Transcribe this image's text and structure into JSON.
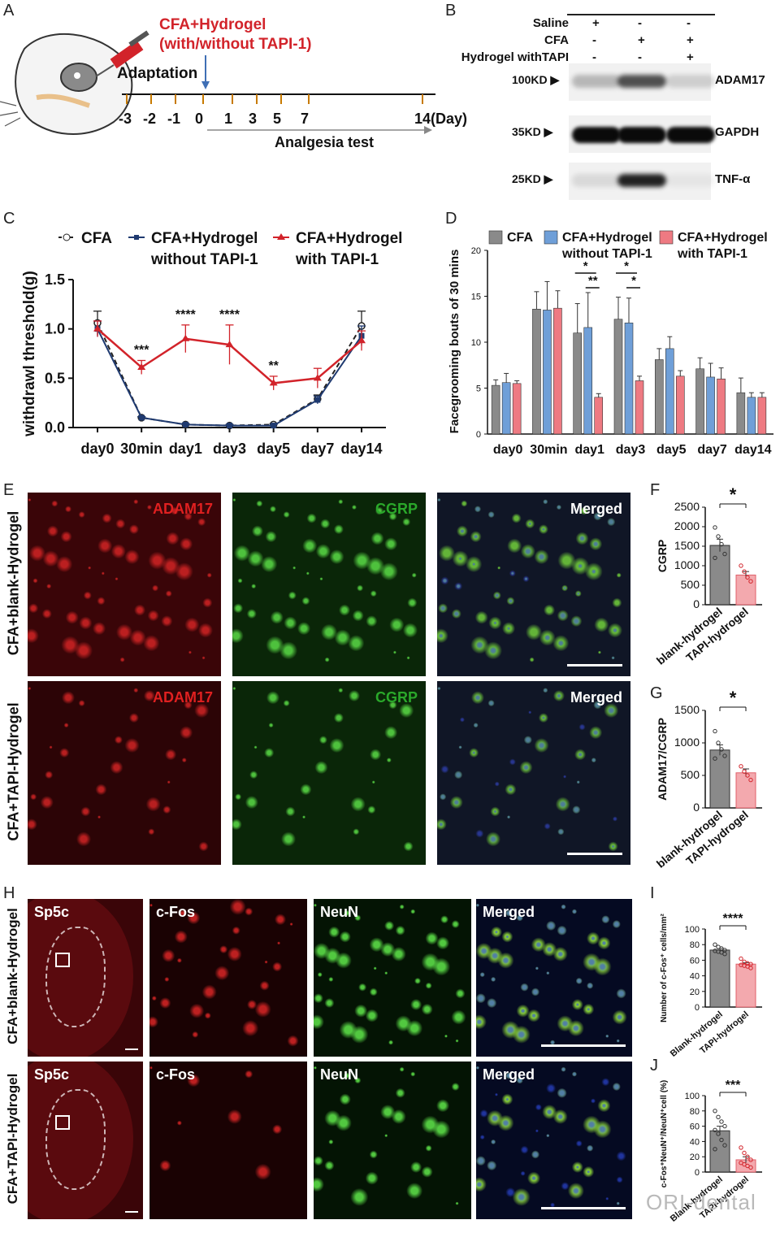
{
  "panels": {
    "A": "A",
    "B": "B",
    "C": "C",
    "D": "D",
    "E": "E",
    "F": "F",
    "G": "G",
    "H": "H",
    "I": "I",
    "J": "J"
  },
  "panelA": {
    "injection_label_1": "CFA+Hydrogel",
    "injection_label_2": "(with/without TAPI-1)",
    "adaptation": "Adaptation",
    "ticks": [
      "-3",
      "-2",
      "-1",
      "0",
      "1",
      "3",
      "5",
      "7",
      "14(Day)"
    ],
    "analgesia": "Analgesia test"
  },
  "panelB": {
    "rows": [
      {
        "label": "Saline",
        "marks": [
          "+",
          "-",
          "-"
        ]
      },
      {
        "label": "CFA",
        "marks": [
          "-",
          "+",
          "+"
        ]
      },
      {
        "label": "Hydrogel withTAPI",
        "marks": [
          "-",
          "-",
          "+"
        ]
      }
    ],
    "bands": [
      {
        "size": "100KD",
        "target": "ADAM17",
        "levels": [
          0.25,
          0.7,
          0.15
        ]
      },
      {
        "size": "35KD",
        "target": "GAPDH",
        "levels": [
          1,
          1,
          1
        ]
      },
      {
        "size": "25KD",
        "target": "TNF-α",
        "levels": [
          0.1,
          0.9,
          0.05
        ]
      }
    ]
  },
  "chart_data": [
    {
      "id": "C",
      "type": "line",
      "ylabel": "withdrawl threshold(g)",
      "categories": [
        "day0",
        "30min",
        "day1",
        "day3",
        "day5",
        "day7",
        "day14"
      ],
      "ylim": [
        0,
        1.5
      ],
      "yticks": [
        "0.0",
        "0.5",
        "1.0",
        "1.5"
      ],
      "series": [
        {
          "name": "CFA",
          "color": "#222222",
          "values": [
            1.06,
            0.1,
            0.03,
            0.02,
            0.03,
            0.29,
            1.03
          ],
          "err": [
            0.12,
            0.01,
            0.01,
            0.01,
            0.01,
            0.04,
            0.15
          ]
        },
        {
          "name_1": "CFA+Hydrogel",
          "name_2": "without TAPI-1",
          "color": "#1f3a70",
          "values": [
            1.0,
            0.1,
            0.03,
            0.02,
            0.02,
            0.28,
            0.93
          ],
          "err": [
            0.08,
            0.01,
            0.01,
            0.01,
            0.01,
            0.04,
            0.1
          ]
        },
        {
          "name_1": "CFA+Hydrogel",
          "name_2": "with TAPI-1",
          "color": "#d2232a",
          "values": [
            1.0,
            0.61,
            0.9,
            0.84,
            0.45,
            0.5,
            0.88
          ],
          "err": [
            0.08,
            0.07,
            0.14,
            0.2,
            0.07,
            0.1,
            0.1
          ]
        }
      ],
      "significance": [
        {
          "index": 1,
          "text": "***"
        },
        {
          "index": 2,
          "text": "****"
        },
        {
          "index": 3,
          "text": "****"
        },
        {
          "index": 4,
          "text": "**"
        }
      ]
    },
    {
      "id": "D",
      "type": "bar",
      "ylabel": "Facegrooming bouts of 30 mins",
      "categories": [
        "day0",
        "30min",
        "day1",
        "day3",
        "day5",
        "day7",
        "day14"
      ],
      "ylim": [
        0,
        20
      ],
      "yticks": [
        "0",
        "5",
        "10",
        "15",
        "20"
      ],
      "series": [
        {
          "name": "CFA",
          "color": "#8a8a8a",
          "values": [
            5.3,
            13.6,
            11.0,
            12.5,
            8.1,
            7.1,
            4.5
          ],
          "err": [
            0.6,
            1.9,
            3.2,
            2.4,
            1.2,
            1.2,
            1.6
          ]
        },
        {
          "name_1": "CFA+Hydrogel",
          "name_2": "without TAPI-1",
          "color": "#6f9fd8",
          "values": [
            5.6,
            13.5,
            11.6,
            12.1,
            9.3,
            6.2,
            4.0
          ],
          "err": [
            1.0,
            3.1,
            3.8,
            2.7,
            1.3,
            1.5,
            0.5
          ]
        },
        {
          "name_1": "CFA+Hydrogel",
          "name_2": "with TAPI-1",
          "color": "#ee7a82",
          "values": [
            5.5,
            13.7,
            4.0,
            5.8,
            6.3,
            6.0,
            4.0
          ],
          "err": [
            0.3,
            1.9,
            0.4,
            0.5,
            0.6,
            1.2,
            0.5
          ]
        }
      ],
      "significance": [
        {
          "index": 2,
          "upper": "*",
          "lower": "**"
        },
        {
          "index": 3,
          "upper": "*",
          "lower": "*"
        }
      ]
    },
    {
      "id": "F",
      "type": "bar",
      "ylabel": "CGRP",
      "categories": [
        "blank-hydrogel",
        "TAPI-hydrogel"
      ],
      "ylim": [
        0,
        2500
      ],
      "yticks": [
        "0",
        "500",
        "1000",
        "1500",
        "2000",
        "2500"
      ],
      "values": [
        1520,
        760
      ],
      "err": [
        160,
        90
      ],
      "colors": [
        "#8a8a8a",
        "#f3a9ae"
      ],
      "points": [
        [
          1980,
          1750,
          1550,
          1300,
          1200
        ],
        [
          1000,
          850,
          700,
          600
        ]
      ],
      "significance": "*"
    },
    {
      "id": "G",
      "type": "bar",
      "ylabel": "ADAM17/CGRP",
      "categories": [
        "blank-hydrogel",
        "TAPI-hydrogel"
      ],
      "ylim": [
        0,
        1500
      ],
      "yticks": [
        "0",
        "500",
        "1000",
        "1500"
      ],
      "values": [
        890,
        540
      ],
      "err": [
        80,
        60
      ],
      "colors": [
        "#8a8a8a",
        "#f3a9ae"
      ],
      "points": [
        [
          1180,
          1000,
          900,
          800,
          760
        ],
        [
          640,
          560,
          500,
          430
        ]
      ],
      "significance": "*"
    },
    {
      "id": "I",
      "type": "bar",
      "ylabel": "Number of c-Fos⁺ cells/mm²",
      "categories": [
        "Blank-hydrogel",
        "TAPI-hydrogel"
      ],
      "ylim": [
        0,
        100
      ],
      "yticks": [
        "0",
        "20",
        "40",
        "60",
        "80",
        "100"
      ],
      "values": [
        73,
        55
      ],
      "err": [
        2,
        2
      ],
      "colors": [
        "#8a8a8a",
        "#f3a9ae"
      ],
      "points": [
        [
          80,
          77,
          75,
          73,
          72,
          71,
          70,
          68
        ],
        [
          62,
          58,
          56,
          55,
          54,
          53,
          52,
          50
        ]
      ],
      "significance": "****"
    },
    {
      "id": "J",
      "type": "bar",
      "ylabel": "c-Fos⁺NeuN⁺/NeuN⁺cell (%)",
      "categories": [
        "Blank-hydrogel",
        "TAPI-hydrogel"
      ],
      "ylim": [
        0,
        100
      ],
      "yticks": [
        "0",
        "20",
        "40",
        "60",
        "80",
        "100"
      ],
      "values": [
        54,
        16
      ],
      "err": [
        6,
        4
      ],
      "colors": [
        "#8a8a8a",
        "#f3a9ae"
      ],
      "points": [
        [
          80,
          72,
          66,
          60,
          55,
          50,
          42,
          35,
          30
        ],
        [
          32,
          25,
          20,
          16,
          12,
          10,
          8,
          6
        ]
      ],
      "significance": "***"
    }
  ],
  "panelE": {
    "rows": [
      "CFA+blank-Hydrogel",
      "CFA+TAPI-Hydrogel"
    ],
    "columns": [
      "ADAM17",
      "CGRP",
      "Merged"
    ]
  },
  "panelH": {
    "rows": [
      "CFA+blank-Hydrogel",
      "CFA+TAPI-Hydrogel"
    ],
    "columns": [
      "Sp5c",
      "c-Fos",
      "NeuN",
      "Merged"
    ]
  },
  "watermark": "ORI-dental",
  "colors": {
    "red_channel": "#e02020",
    "green_channel": "#2aa82a",
    "cfa_red": "#d2232a",
    "navy": "#1f3a70"
  }
}
